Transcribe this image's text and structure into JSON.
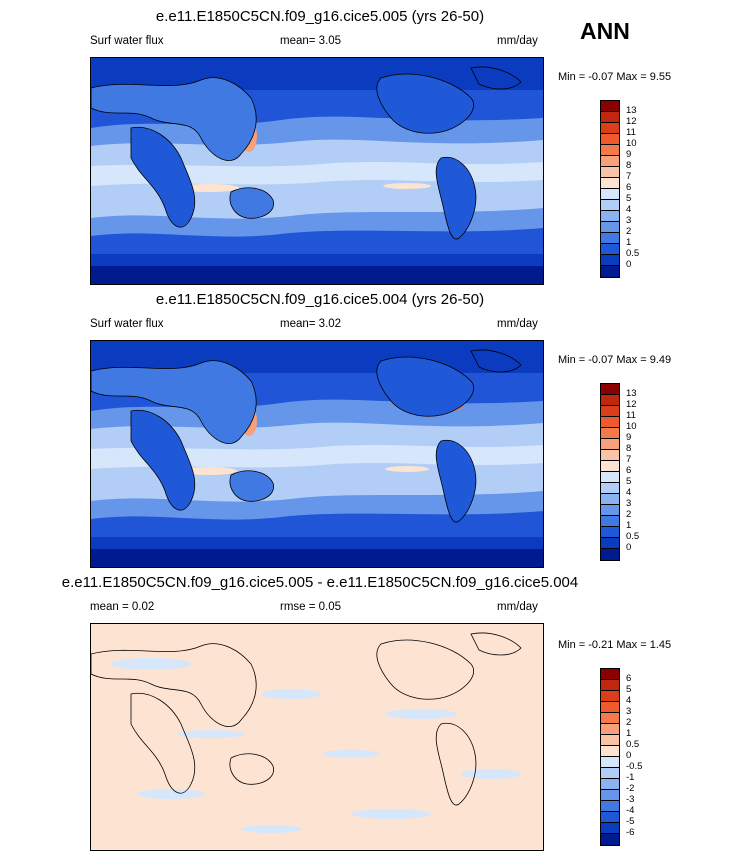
{
  "season": "ANN",
  "panels": [
    {
      "title": "e.e11.E1850C5CN.f09_g16.cice5.005 (yrs 26-50)",
      "left_label": "Surf water flux",
      "center_label": "mean=   3.05",
      "units": "mm/day",
      "minmax": "Min =  -0.07 Max =   9.55",
      "levels": [
        "13",
        "12",
        "11",
        "10",
        "9",
        "8",
        "7",
        "6",
        "5",
        "4",
        "3",
        "2",
        "1",
        "0.5",
        "0"
      ],
      "colors": [
        "#8b0000",
        "#c0270f",
        "#dc3d1a",
        "#ee5a2c",
        "#f47a4c",
        "#f7a07a",
        "#f9c3a6",
        "#fde3d2",
        "#d6e6fb",
        "#b2cef6",
        "#8ab2f0",
        "#6696ea",
        "#4179e2",
        "#2059d8",
        "#0b3cc0",
        "#001a90"
      ]
    },
    {
      "title": "e.e11.E1850C5CN.f09_g16.cice5.004 (yrs 26-50)",
      "left_label": "Surf water flux",
      "center_label": "mean=   3.02",
      "units": "mm/day",
      "minmax": "Min =  -0.07 Max =   9.49",
      "levels": [
        "13",
        "12",
        "11",
        "10",
        "9",
        "8",
        "7",
        "6",
        "5",
        "4",
        "3",
        "2",
        "1",
        "0.5",
        "0"
      ],
      "colors": [
        "#8b0000",
        "#c0270f",
        "#dc3d1a",
        "#ee5a2c",
        "#f47a4c",
        "#f7a07a",
        "#f9c3a6",
        "#fde3d2",
        "#d6e6fb",
        "#b2cef6",
        "#8ab2f0",
        "#6696ea",
        "#4179e2",
        "#2059d8",
        "#0b3cc0",
        "#001a90"
      ]
    },
    {
      "title": "e.e11.E1850C5CN.f09_g16.cice5.005 - e.e11.E1850C5CN.f09_g16.cice5.004",
      "left_label": "mean =   0.02",
      "center_label": "rmse =   0.05",
      "units": "mm/day",
      "minmax": "Min =  -0.21 Max =   1.45",
      "levels": [
        "6",
        "5",
        "4",
        "3",
        "2",
        "1",
        "0.5",
        "0",
        "-0.5",
        "-1",
        "-2",
        "-3",
        "-4",
        "-5",
        "-6"
      ],
      "colors": [
        "#8b0000",
        "#c0270f",
        "#dc3d1a",
        "#ee5a2c",
        "#f47a4c",
        "#f7a07a",
        "#f9c3a6",
        "#fde3d2",
        "#d6e6fb",
        "#b2cef6",
        "#8ab2f0",
        "#6696ea",
        "#4179e2",
        "#2059d8",
        "#0b3cc0",
        "#001a90"
      ]
    }
  ],
  "chart_data": [
    {
      "type": "heatmap",
      "title": "e.e11.E1850C5CN.f09_g16.cice5.005 (yrs 26-50)",
      "variable": "Surf water flux",
      "units": "mm/day",
      "mean": 3.05,
      "min": -0.07,
      "max": 9.55,
      "contour_levels": [
        0,
        0.5,
        1,
        2,
        3,
        4,
        5,
        6,
        7,
        8,
        9,
        10,
        11,
        12,
        13
      ]
    },
    {
      "type": "heatmap",
      "title": "e.e11.E1850C5CN.f09_g16.cice5.004 (yrs 26-50)",
      "variable": "Surf water flux",
      "units": "mm/day",
      "mean": 3.02,
      "min": -0.07,
      "max": 9.49,
      "contour_levels": [
        0,
        0.5,
        1,
        2,
        3,
        4,
        5,
        6,
        7,
        8,
        9,
        10,
        11,
        12,
        13
      ]
    },
    {
      "type": "heatmap",
      "title": "e.e11.E1850C5CN.f09_g16.cice5.005 - e.e11.E1850C5CN.f09_g16.cice5.004",
      "units": "mm/day",
      "mean": 0.02,
      "rmse": 0.05,
      "min": -0.21,
      "max": 1.45,
      "contour_levels": [
        -6,
        -5,
        -4,
        -3,
        -2,
        -1,
        -0.5,
        0,
        0.5,
        1,
        2,
        3,
        4,
        5,
        6
      ]
    }
  ]
}
